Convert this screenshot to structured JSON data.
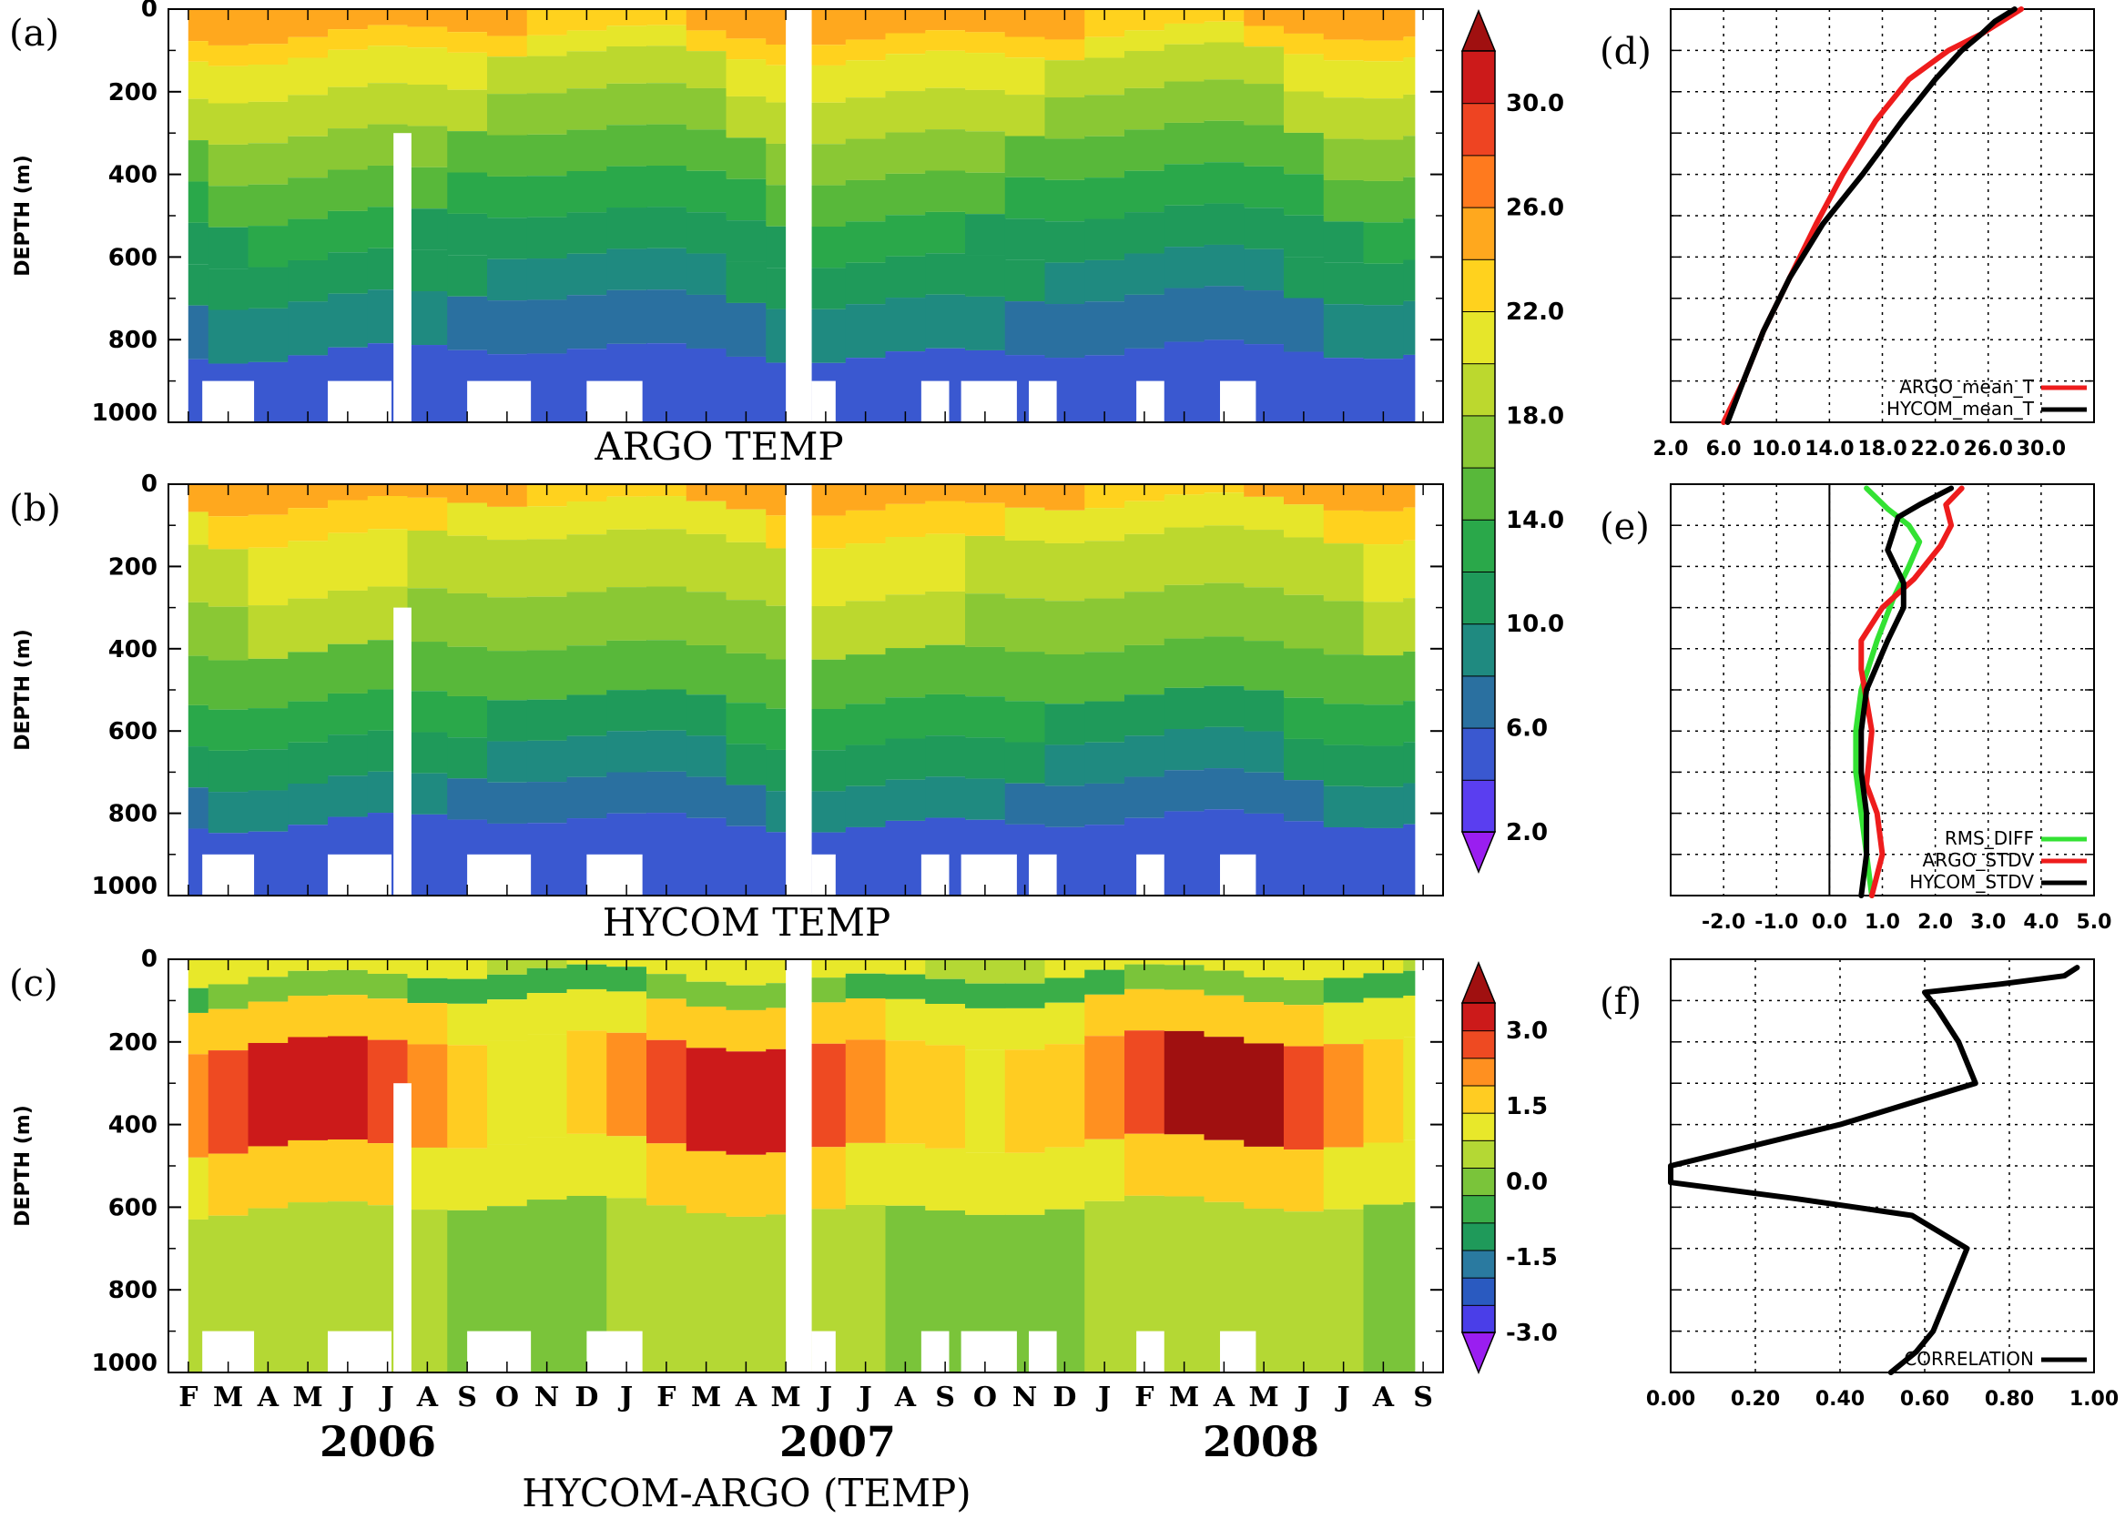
{
  "chart_data": [
    {
      "id": "a",
      "type": "heatmap",
      "panel_label": "(a)",
      "title": "ARGO TEMP",
      "ylabel": "DEPTH (m)",
      "y_ticks": [
        "0",
        "200",
        "400",
        "600",
        "800",
        "1000"
      ],
      "ylim": [
        1000,
        0
      ],
      "depth_bands_degC": [
        {
          "top": 0,
          "bottom": 60,
          "value": 25
        },
        {
          "top": 60,
          "bottom": 110,
          "value": 23
        },
        {
          "top": 110,
          "bottom": 200,
          "value": 21
        },
        {
          "top": 200,
          "bottom": 300,
          "value": 19
        },
        {
          "top": 300,
          "bottom": 400,
          "value": 17
        },
        {
          "top": 400,
          "bottom": 500,
          "value": 15
        },
        {
          "top": 500,
          "bottom": 600,
          "value": 13
        },
        {
          "top": 600,
          "bottom": 700,
          "value": 11.5
        },
        {
          "top": 700,
          "bottom": 830,
          "value": 9.5
        },
        {
          "top": 830,
          "bottom": 1000,
          "value": 7
        }
      ]
    },
    {
      "id": "b",
      "type": "heatmap",
      "panel_label": "(b)",
      "title": "HYCOM TEMP",
      "ylabel": "DEPTH (m)",
      "y_ticks": [
        "0",
        "200",
        "400",
        "600",
        "800",
        "1000"
      ],
      "ylim": [
        1000,
        0
      ],
      "depth_bands_degC": [
        {
          "top": 0,
          "bottom": 50,
          "value": 25
        },
        {
          "top": 50,
          "bottom": 130,
          "value": 22.5
        },
        {
          "top": 130,
          "bottom": 270,
          "value": 20.5
        },
        {
          "top": 270,
          "bottom": 400,
          "value": 18.5
        },
        {
          "top": 400,
          "bottom": 520,
          "value": 16
        },
        {
          "top": 520,
          "bottom": 620,
          "value": 13.5
        },
        {
          "top": 620,
          "bottom": 720,
          "value": 11.5
        },
        {
          "top": 720,
          "bottom": 820,
          "value": 9.5
        },
        {
          "top": 820,
          "bottom": 1000,
          "value": 7
        }
      ],
      "colorbar": {
        "ticks": [
          "2.0",
          "6.0",
          "10.0",
          "14.0",
          "18.0",
          "22.0",
          "26.0",
          "30.0"
        ],
        "colors": [
          "#9a1ef0",
          "#5a3ef0",
          "#3a58d0",
          "#2a70a0",
          "#1f8a80",
          "#1f9a5a",
          "#2aa84a",
          "#58b83a",
          "#8ac834",
          "#bcd82e",
          "#e6e62a",
          "#ffd21e",
          "#ffa81e",
          "#ff7a1e",
          "#ee4422",
          "#cc1a1a",
          "#a01010"
        ],
        "bounds": [
          2,
          34
        ]
      }
    },
    {
      "id": "c",
      "type": "heatmap",
      "panel_label": "(c)",
      "title": "HYCOM-ARGO (TEMP)",
      "ylabel": "DEPTH (m)",
      "y_ticks": [
        "0",
        "200",
        "400",
        "600",
        "800",
        "1000"
      ],
      "ylim": [
        1000,
        0
      ],
      "x_months": [
        "F",
        "M",
        "A",
        "M",
        "J",
        "J",
        "A",
        "S",
        "O",
        "N",
        "D",
        "J",
        "F",
        "M",
        "A",
        "M",
        "J",
        "J",
        "A",
        "S",
        "O",
        "N",
        "D",
        "J",
        "F",
        "M",
        "A",
        "M",
        "J",
        "J",
        "A",
        "S"
      ],
      "years": [
        "2006",
        "2007",
        "2008"
      ],
      "depth_bands_degC": [
        {
          "top": 0,
          "bottom": 40,
          "value": 0.6
        },
        {
          "top": 40,
          "bottom": 100,
          "value": -0.5
        },
        {
          "top": 100,
          "bottom": 200,
          "value": 0.9
        },
        {
          "top": 200,
          "bottom": 450,
          "value": 1.6
        },
        {
          "top": 450,
          "bottom": 600,
          "value": 0.8
        },
        {
          "top": 600,
          "bottom": 1000,
          "value": 0.1
        }
      ],
      "colorbar": {
        "ticks": [
          "-3.0",
          "-1.5",
          "0.0",
          "1.5",
          "3.0"
        ],
        "colors": [
          "#9a1ef0",
          "#4a3ee8",
          "#2a5ac0",
          "#2a7aa0",
          "#1f9a5a",
          "#3aae48",
          "#7ac43a",
          "#b4d834",
          "#e8e82a",
          "#ffcc22",
          "#ff9020",
          "#ee4a22",
          "#cc1a1a",
          "#a01010"
        ],
        "bounds": [
          -3,
          3
        ]
      }
    },
    {
      "id": "d",
      "type": "line",
      "panel_label": "(d)",
      "x_ticks": [
        "2.0",
        "6.0",
        "10.0",
        "14.0",
        "18.0",
        "22.0",
        "26.0",
        "30.0"
      ],
      "xlim": [
        2,
        34
      ],
      "ylim": [
        1000,
        0
      ],
      "series": [
        {
          "name": "ARGO_mean_T",
          "color": "#ee1c1c",
          "x": [
            28.5,
            27,
            25.5,
            23,
            20,
            17.5,
            15,
            13,
            11,
            9,
            7.5,
            6
          ],
          "y": [
            0,
            30,
            60,
            100,
            170,
            270,
            400,
            520,
            650,
            780,
            900,
            1000
          ]
        },
        {
          "name": "HYCOM_mean_T",
          "color": "#000000",
          "x": [
            28,
            26.5,
            25.5,
            24,
            22,
            19.5,
            16.5,
            13.5,
            11,
            9,
            7.5,
            6.3
          ],
          "y": [
            0,
            30,
            60,
            100,
            170,
            270,
            400,
            520,
            650,
            780,
            900,
            1000
          ]
        }
      ]
    },
    {
      "id": "e",
      "type": "line",
      "panel_label": "(e)",
      "x_ticks": [
        "-2.0",
        "-1.0",
        "0.0",
        "1.0",
        "2.0",
        "3.0",
        "4.0",
        "5.0"
      ],
      "xlim": [
        -3,
        5
      ],
      "ylim": [
        1000,
        0
      ],
      "series": [
        {
          "name": "RMS_DIFF",
          "color": "#33e233",
          "x": [
            0.7,
            1.1,
            1.5,
            1.7,
            1.5,
            1.2,
            0.9,
            0.6,
            0.5,
            0.5,
            0.6,
            0.7,
            0.8
          ],
          "y": [
            10,
            60,
            100,
            140,
            200,
            280,
            380,
            500,
            600,
            700,
            800,
            900,
            1000
          ]
        },
        {
          "name": "ARGO_STDV",
          "color": "#ee1c1c",
          "x": [
            2.5,
            2.2,
            2.3,
            2.1,
            1.6,
            1.0,
            0.6,
            0.6,
            0.8,
            0.7,
            0.9,
            1.0,
            0.8
          ],
          "y": [
            10,
            50,
            100,
            150,
            230,
            300,
            380,
            450,
            600,
            730,
            800,
            900,
            1000
          ]
        },
        {
          "name": "HYCOM_STDV",
          "color": "#000000",
          "x": [
            2.3,
            1.7,
            1.3,
            1.1,
            1.4,
            1.4,
            1.1,
            0.7,
            0.6,
            0.6,
            0.7,
            0.7,
            0.6
          ],
          "y": [
            10,
            50,
            80,
            160,
            240,
            300,
            380,
            500,
            600,
            700,
            800,
            900,
            1000
          ]
        }
      ]
    },
    {
      "id": "f",
      "type": "line",
      "panel_label": "(f)",
      "x_ticks": [
        "0.00",
        "0.20",
        "0.40",
        "0.60",
        "0.80",
        "1.00"
      ],
      "xlim": [
        0,
        1
      ],
      "ylim": [
        1000,
        0
      ],
      "series": [
        {
          "name": "CORRELATION",
          "color": "#000000",
          "x": [
            0.96,
            0.93,
            0.78,
            0.6,
            0.63,
            0.68,
            0.72,
            0.4,
            0.0,
            0.0,
            0.3,
            0.57,
            0.7,
            0.66,
            0.62,
            0.58,
            0.52
          ],
          "y": [
            20,
            40,
            60,
            80,
            120,
            200,
            300,
            400,
            500,
            540,
            580,
            620,
            700,
            800,
            900,
            950,
            1000
          ]
        }
      ]
    }
  ]
}
